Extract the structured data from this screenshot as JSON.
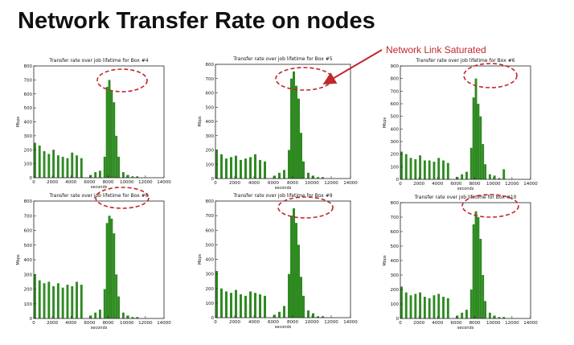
{
  "slide": {
    "title": "Network Transfer Rate on nodes",
    "callout": "Network Link Saturated",
    "accent_color": "#c0282c",
    "bar_color": "#2f8a22"
  },
  "chart_data": [
    {
      "type": "bar",
      "title": "Transfer rate over job lifetime for Box #4",
      "xlabel": "seconds",
      "ylabel": "Mbps",
      "xlim": [
        0,
        14000
      ],
      "ylim": [
        0,
        800
      ],
      "xticks": [
        0,
        2000,
        4000,
        6000,
        8000,
        10000,
        12000,
        14000
      ],
      "yticks": [
        0,
        100,
        200,
        300,
        400,
        500,
        600,
        700,
        800
      ],
      "grid": false,
      "series": [
        {
          "x": [
            0,
            500,
            1000,
            1500,
            2000,
            2500,
            3000,
            3500,
            4000,
            4500,
            5000,
            5500,
            6000,
            6500,
            7000,
            7500,
            7750,
            8000,
            8250,
            8500,
            8750,
            9000,
            9500,
            10000,
            10500,
            11000,
            11500,
            12000
          ],
          "values": [
            250,
            230,
            190,
            170,
            200,
            160,
            150,
            140,
            180,
            160,
            140,
            0,
            20,
            40,
            50,
            150,
            650,
            700,
            620,
            540,
            300,
            150,
            40,
            20,
            10,
            10,
            0,
            0
          ]
        }
      ],
      "annotation": "saturation-ellipse"
    },
    {
      "type": "bar",
      "title": "Transfer rate over job lifetime for Box #5",
      "xlabel": "seconds",
      "ylabel": "Mbps",
      "xlim": [
        0,
        14000
      ],
      "ylim": [
        0,
        800
      ],
      "xticks": [
        0,
        2000,
        4000,
        6000,
        8000,
        10000,
        12000,
        14000
      ],
      "yticks": [
        0,
        100,
        200,
        300,
        400,
        500,
        600,
        700,
        800
      ],
      "grid": false,
      "series": [
        {
          "x": [
            0,
            500,
            1000,
            1500,
            2000,
            2500,
            3000,
            3500,
            4000,
            4500,
            5000,
            5500,
            6000,
            6500,
            7000,
            7500,
            7750,
            8000,
            8250,
            8500,
            8750,
            9000,
            9500,
            10000,
            10500,
            11000,
            11500,
            12000
          ],
          "values": [
            200,
            170,
            140,
            150,
            160,
            130,
            140,
            150,
            170,
            130,
            120,
            0,
            20,
            40,
            60,
            200,
            700,
            750,
            650,
            560,
            320,
            120,
            40,
            20,
            10,
            10,
            0,
            0
          ]
        }
      ],
      "annotation": "saturation-ellipse"
    },
    {
      "type": "bar",
      "title": "Transfer rate over job lifetime for Box #6",
      "xlabel": "seconds",
      "ylabel": "Mbps",
      "xlim": [
        0,
        14000
      ],
      "ylim": [
        0,
        900
      ],
      "xticks": [
        0,
        2000,
        4000,
        6000,
        8000,
        10000,
        12000,
        14000
      ],
      "yticks": [
        0,
        100,
        200,
        300,
        400,
        500,
        600,
        700,
        800,
        900
      ],
      "grid": false,
      "series": [
        {
          "x": [
            0,
            500,
            1000,
            1500,
            2000,
            2500,
            3000,
            3500,
            4000,
            4500,
            5000,
            5500,
            6000,
            6500,
            7000,
            7500,
            7750,
            8000,
            8250,
            8500,
            8750,
            9000,
            9500,
            10000,
            10500,
            11000,
            11500,
            12000
          ],
          "values": [
            220,
            200,
            170,
            160,
            190,
            150,
            150,
            140,
            170,
            150,
            130,
            0,
            20,
            40,
            60,
            250,
            650,
            800,
            600,
            500,
            280,
            120,
            40,
            30,
            10,
            80,
            0,
            0
          ]
        }
      ],
      "annotation": "saturation-ellipse"
    },
    {
      "type": "bar",
      "title": "Transfer rate over job lifetime for Box #8",
      "xlabel": "seconds",
      "ylabel": "Mbps",
      "xlim": [
        0,
        14000
      ],
      "ylim": [
        0,
        800
      ],
      "xticks": [
        0,
        2000,
        4000,
        6000,
        8000,
        10000,
        12000,
        14000
      ],
      "yticks": [
        0,
        100,
        200,
        300,
        400,
        500,
        600,
        700,
        800
      ],
      "grid": false,
      "series": [
        {
          "x": [
            0,
            500,
            1000,
            1500,
            2000,
            2500,
            3000,
            3500,
            4000,
            4500,
            5000,
            5500,
            6000,
            6500,
            7000,
            7500,
            7750,
            8000,
            8250,
            8500,
            8750,
            9000,
            9500,
            10000,
            10500,
            11000,
            11500,
            12000
          ],
          "values": [
            300,
            260,
            240,
            250,
            220,
            240,
            210,
            230,
            220,
            250,
            230,
            0,
            20,
            40,
            60,
            200,
            650,
            700,
            680,
            580,
            300,
            150,
            40,
            20,
            10,
            10,
            0,
            0
          ]
        }
      ],
      "annotation": "saturation-ellipse"
    },
    {
      "type": "bar",
      "title": "Transfer rate over job lifetime for Box #9",
      "xlabel": "seconds",
      "ylabel": "Mbps",
      "xlim": [
        0,
        14000
      ],
      "ylim": [
        0,
        800
      ],
      "xticks": [
        0,
        2000,
        4000,
        6000,
        8000,
        10000,
        12000,
        14000
      ],
      "yticks": [
        0,
        100,
        200,
        300,
        400,
        500,
        600,
        700,
        800
      ],
      "grid": false,
      "series": [
        {
          "x": [
            0,
            500,
            1000,
            1500,
            2000,
            2500,
            3000,
            3500,
            4000,
            4500,
            5000,
            5500,
            6000,
            6500,
            7000,
            7500,
            7750,
            8000,
            8250,
            8500,
            8750,
            9000,
            9500,
            10000,
            10500,
            11000,
            11500,
            12000
          ],
          "values": [
            320,
            200,
            180,
            170,
            190,
            160,
            150,
            180,
            170,
            160,
            150,
            0,
            20,
            40,
            80,
            300,
            700,
            750,
            650,
            500,
            280,
            150,
            50,
            30,
            10,
            10,
            0,
            0
          ]
        }
      ],
      "annotation": "saturation-ellipse"
    },
    {
      "type": "bar",
      "title": "Transfer rate over job lifetime for Box #10",
      "xlabel": "seconds",
      "ylabel": "Mbps",
      "xlim": [
        0,
        14000
      ],
      "ylim": [
        0,
        800
      ],
      "xticks": [
        0,
        2000,
        4000,
        6000,
        8000,
        10000,
        12000,
        14000
      ],
      "yticks": [
        0,
        100,
        200,
        300,
        400,
        500,
        600,
        700,
        800
      ],
      "grid": false,
      "series": [
        {
          "x": [
            0,
            500,
            1000,
            1500,
            2000,
            2500,
            3000,
            3500,
            4000,
            4500,
            5000,
            5500,
            6000,
            6500,
            7000,
            7500,
            7750,
            8000,
            8250,
            8500,
            8750,
            9000,
            9500,
            10000,
            10500,
            11000,
            11500,
            12000
          ],
          "values": [
            220,
            180,
            160,
            170,
            180,
            150,
            140,
            160,
            170,
            150,
            140,
            0,
            20,
            40,
            60,
            200,
            650,
            740,
            700,
            550,
            300,
            120,
            40,
            20,
            10,
            10,
            0,
            0
          ]
        }
      ],
      "annotation": "saturation-ellipse"
    }
  ]
}
